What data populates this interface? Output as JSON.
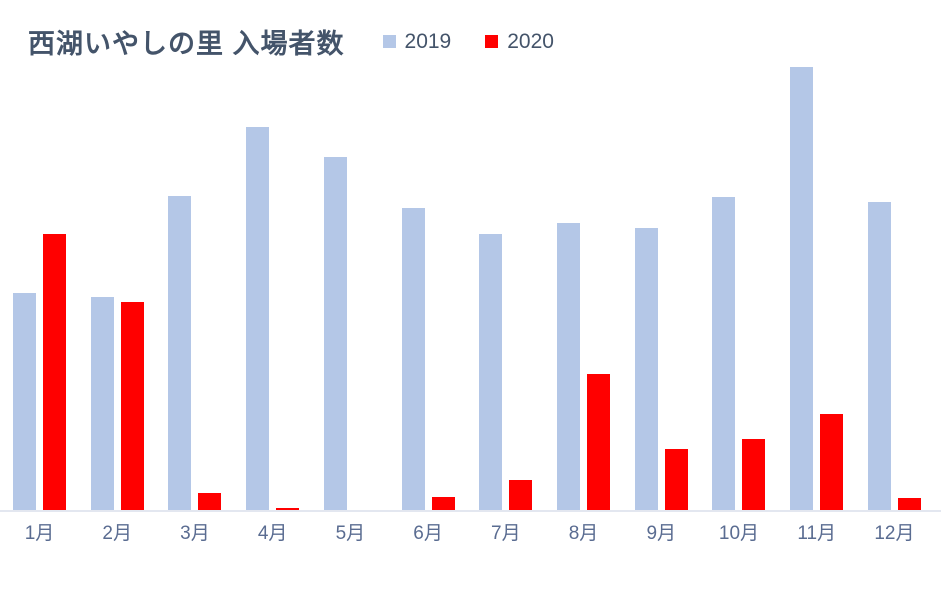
{
  "chart_data": {
    "type": "bar",
    "title": "西湖いやしの里 入場者数",
    "categories": [
      "1月",
      "2月",
      "3月",
      "4月",
      "5月",
      "6月",
      "7月",
      "8月",
      "9月",
      "10月",
      "11月",
      "12月"
    ],
    "series": [
      {
        "name": "2019",
        "color": "#B4C7E7",
        "values": [
          218,
          214,
          315,
          384,
          354,
          303,
          277,
          288,
          283,
          314,
          444,
          309
        ]
      },
      {
        "name": "2020",
        "color": "#FF0000",
        "values": [
          277,
          209,
          18,
          3,
          0,
          14,
          31,
          137,
          62,
          72,
          97,
          13
        ]
      }
    ],
    "xlabel": "",
    "ylabel": "",
    "ylim": [
      0,
      450
    ],
    "y_axis_visible": false,
    "gridlines": false,
    "legend_position": "top",
    "axis_line_color": "#E3E7F0",
    "title_color": "#44546A",
    "tick_label_color": "#5A6C91"
  }
}
